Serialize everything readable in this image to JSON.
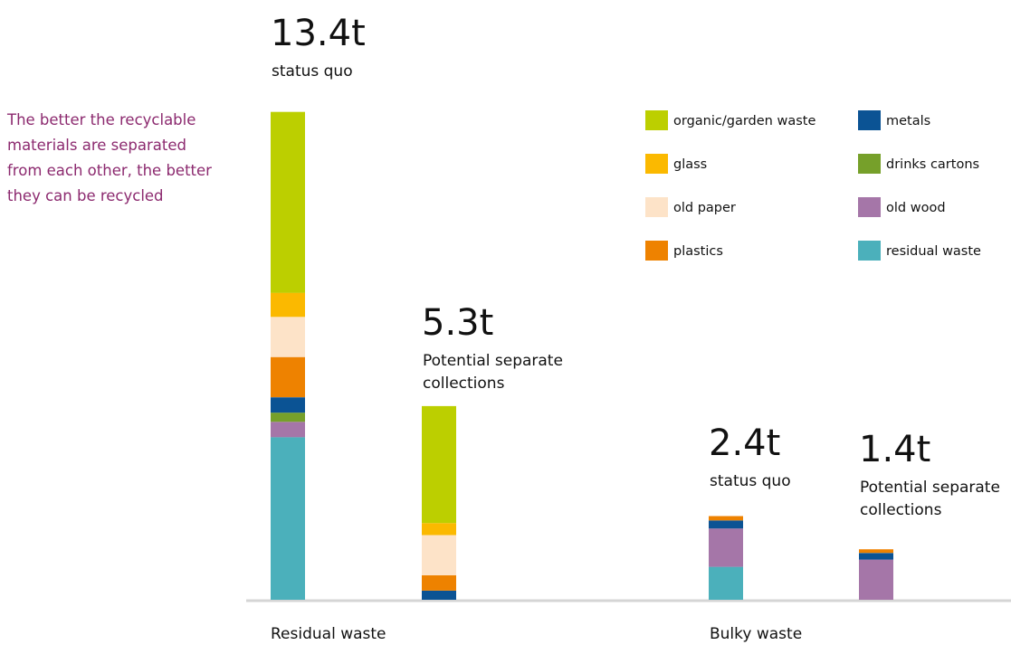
{
  "note": {
    "lines": [
      "The better the recyclable",
      "materials are separated",
      "from each other, the better",
      "they can be recycled"
    ],
    "color": "#8c2a6f"
  },
  "chart_data": {
    "type": "bar",
    "stacked": true,
    "unit": "t",
    "legend_position": "top-right",
    "grid": false,
    "materials": [
      {
        "key": "organic",
        "name": "organic/garden waste",
        "color": "#bccf00"
      },
      {
        "key": "glass",
        "name": "glass",
        "color": "#fbb900"
      },
      {
        "key": "paper",
        "name": "old paper",
        "color": "#fde3c8"
      },
      {
        "key": "plastics",
        "name": "plastics",
        "color": "#ee8200"
      },
      {
        "key": "metals",
        "name": "metals",
        "color": "#0b5394"
      },
      {
        "key": "cartons",
        "name": "drinks cartons",
        "color": "#76a02a"
      },
      {
        "key": "wood",
        "name": "old wood",
        "color": "#a576a8"
      },
      {
        "key": "residual",
        "name": "residual waste",
        "color": "#4bb0bb"
      }
    ],
    "bars": [
      {
        "group": "Residual waste",
        "total_label": "13.4t",
        "label_lines": [
          "status quo"
        ],
        "segments": {
          "residual": 4.45,
          "wood": 0.42,
          "cartons": 0.25,
          "metals": 0.42,
          "plastics": 1.1,
          "paper": 1.1,
          "glass": 0.66,
          "organic": 4.95
        }
      },
      {
        "group": "Residual waste",
        "total_label": "5.3t",
        "label_lines": [
          "Potential separate",
          "collections"
        ],
        "segments": {
          "metals": 0.25,
          "plastics": 0.42,
          "paper": 1.1,
          "glass": 0.33,
          "organic": 3.2
        }
      },
      {
        "group": "Bulky waste",
        "total_label": "2.4t",
        "label_lines": [
          "status quo"
        ],
        "segments": {
          "residual": 0.9,
          "wood": 1.05,
          "metals": 0.22,
          "plastics": 0.12
        }
      },
      {
        "group": "Bulky waste",
        "total_label": "1.4t",
        "label_lines": [
          "Potential separate",
          "collections"
        ],
        "segments": {
          "wood": 1.1,
          "metals": 0.18,
          "plastics": 0.1
        }
      }
    ],
    "categories": [
      "Residual waste",
      "Bulky waste"
    ]
  }
}
